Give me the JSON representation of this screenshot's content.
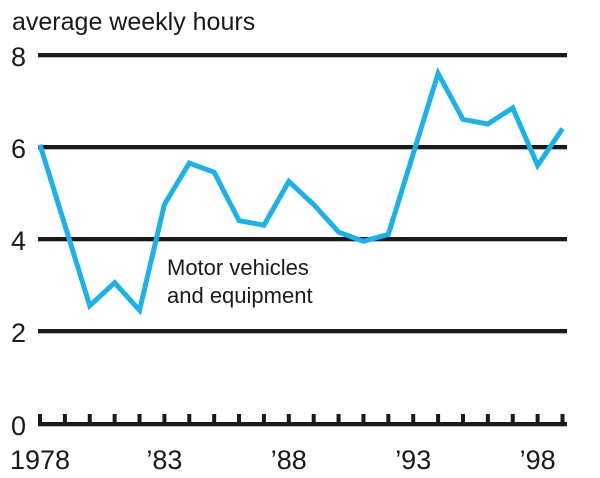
{
  "colors": {
    "background": "#ffffff",
    "axis": "#1a1a1a",
    "axis_shadow": "#b9b9b9",
    "text": "#1a1a1a",
    "line": "#1bb2e9"
  },
  "chart_data": {
    "type": "line",
    "title": "average weekly hours",
    "ylabel": "average weekly hours",
    "xlabel": "",
    "grid": "horizontal-black-rules",
    "legend": "none (in-plot annotation)",
    "ylim": [
      0,
      8
    ],
    "xlim": [
      1978,
      1999
    ],
    "yticks": [
      8,
      6,
      4,
      2,
      0
    ],
    "ygridlines": [
      8,
      6,
      4,
      2
    ],
    "x": [
      1978,
      1979,
      1980,
      1981,
      1982,
      1983,
      1984,
      1985,
      1986,
      1987,
      1988,
      1989,
      1990,
      1991,
      1992,
      1993,
      1994,
      1995,
      1996,
      1997,
      1998,
      1999
    ],
    "series": [
      {
        "name": "Motor vehicles and equipment",
        "color": "#1bb2e9",
        "values": [
          6.05,
          4.3,
          2.55,
          3.05,
          2.45,
          4.75,
          5.65,
          5.45,
          4.4,
          4.3,
          5.25,
          4.75,
          4.15,
          3.95,
          4.1,
          5.85,
          7.6,
          6.6,
          6.5,
          6.85,
          5.6,
          6.4
        ]
      }
    ],
    "xtick_marks_every": 1,
    "xtick_labels": [
      {
        "x": 1978,
        "text": "1978"
      },
      {
        "x": 1983,
        "text": "’83"
      },
      {
        "x": 1988,
        "text": "’88"
      },
      {
        "x": 1993,
        "text": "’93"
      },
      {
        "x": 1998,
        "text": "’98"
      }
    ],
    "annotation": {
      "line1": "Motor vehicles",
      "line2": "and equipment"
    }
  }
}
